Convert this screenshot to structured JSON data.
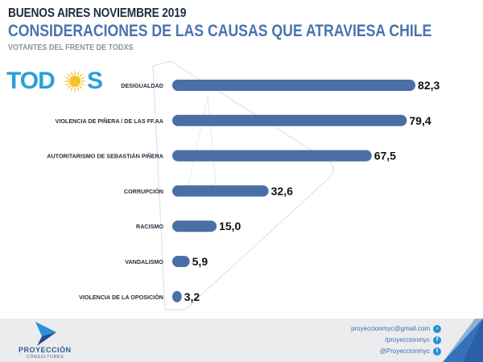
{
  "header": {
    "line1": "BUENOS AIRES NOVIEMBRE 2019",
    "line2": "CONSIDERACIONES DE LAS CAUSAS QUE ATRAVIESA CHILE",
    "line3": "VOTANTES DEL FRENTE DE TODXS"
  },
  "logo": {
    "text_left": "TOD",
    "text_right": "S",
    "sun_color": "#f6c12c",
    "text_color": "#2a9fd8"
  },
  "chart_data": {
    "type": "bar",
    "orientation": "horizontal",
    "categories": [
      "DESIGUALDAD",
      "VIOLENCIA DE PIÑERA / DE LAS FF.AA",
      "AUTORITARISMO DE SEBASTIÁN PIÑERA",
      "CORRUPCIÓN",
      "RACISMO",
      "VANDALISMO",
      "VIOLENCIA DE LA OPOSICIÓN"
    ],
    "values": [
      82.3,
      79.4,
      67.5,
      32.6,
      15.0,
      5.9,
      3.2
    ],
    "value_labels": [
      "82,3",
      "79,4",
      "67,5",
      "32,6",
      "15,0",
      "5,9",
      "3,2"
    ],
    "title": "CONSIDERACIONES DE LAS CAUSAS QUE ATRAVIESA CHILE",
    "xlabel": "",
    "ylabel": "",
    "xlim": [
      0,
      100
    ],
    "grid": false,
    "legend": "none",
    "bar_color": "#4a6ea6"
  },
  "footer": {
    "brand": "PROYECCIÓN",
    "brand_sub": "CONSULTORES",
    "email": "proyeccionmyc@gmail.com",
    "facebook": "/proyeccionmyc",
    "twitter": "@Proyeccionmyc",
    "accent_color": "#2a5ea8"
  }
}
